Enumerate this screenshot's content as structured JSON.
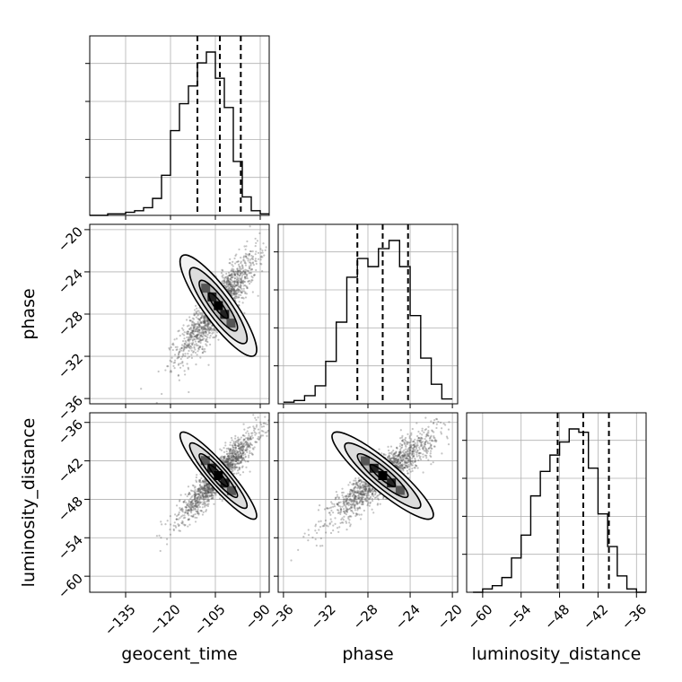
{
  "chart_data": {
    "type": "corner",
    "parameters": [
      "geocent_time",
      "phase",
      "luminosity_distance"
    ],
    "ranges": {
      "geocent_time": [
        -147,
        -87
      ],
      "phase": [
        -36.5,
        -19.5
      ],
      "luminosity_distance": [
        -62.5,
        -34.5
      ]
    },
    "ticks": {
      "geocent_time": [
        -135,
        -120,
        -105,
        -90
      ],
      "phase": [
        -36,
        -32,
        -28,
        -24,
        -20
      ],
      "luminosity_distance": [
        -60,
        -54,
        -48,
        -42,
        -36
      ]
    },
    "tick_labels": {
      "geocent_time": [
        "−135",
        "−120",
        "−105",
        "−90"
      ],
      "phase": [
        "−36",
        "−32",
        "−28",
        "−24",
        "−20"
      ],
      "luminosity_distance": [
        "−60",
        "−54",
        "−48",
        "−42",
        "−36"
      ]
    },
    "quantiles": {
      "geocent_time": [
        -111.0,
        -103.5,
        -96.5
      ],
      "phase": [
        -29.0,
        -26.6,
        -24.2
      ],
      "luminosity_distance": [
        -48.3,
        -44.3,
        -40.3
      ]
    },
    "histograms": {
      "geocent_time": {
        "edges": [
          -147,
          -144,
          -141,
          -138,
          -135,
          -132,
          -129,
          -126,
          -123,
          -120,
          -117,
          -114,
          -111,
          -108,
          -105,
          -102,
          -99,
          -96,
          -93,
          -90,
          -87
        ],
        "counts": [
          0,
          0,
          2,
          2,
          4,
          6,
          10,
          22,
          52,
          110,
          145,
          168,
          198,
          212,
          178,
          140,
          70,
          24,
          6,
          2
        ]
      },
      "phase": {
        "edges": [
          -36.0,
          -35.0,
          -34.0,
          -33.0,
          -32.0,
          -31.0,
          -30.0,
          -29.0,
          -28.0,
          -27.0,
          -26.0,
          -25.0,
          -24.0,
          -23.0,
          -22.0,
          -21.0,
          -20.0
        ],
        "counts": [
          2,
          4,
          10,
          22,
          52,
          100,
          155,
          178,
          168,
          190,
          200,
          168,
          108,
          56,
          24,
          6
        ]
      },
      "luminosity_distance": {
        "edges": [
          -61.5,
          -60.0,
          -58.5,
          -57.0,
          -55.5,
          -54.0,
          -52.5,
          -51.0,
          -49.5,
          -48.0,
          -46.5,
          -45.0,
          -43.5,
          -42.0,
          -40.5,
          -39.0,
          -37.5,
          -36.0,
          -34.5
        ],
        "counts": [
          0,
          4,
          8,
          18,
          42,
          70,
          118,
          148,
          168,
          184,
          200,
          196,
          152,
          96,
          56,
          20,
          4,
          0
        ]
      }
    },
    "pairs": [
      {
        "x": "geocent_time",
        "y": "phase",
        "mean": [
          -104,
          -27.2
        ],
        "sd": [
          6.4,
          2.4
        ],
        "rho": 0.87,
        "n_samples": 1600
      },
      {
        "x": "geocent_time",
        "y": "luminosity_distance",
        "mean": [
          -104,
          -44.3
        ],
        "sd": [
          6.4,
          3.4
        ],
        "rho": 0.92,
        "n_samples": 1600
      },
      {
        "x": "phase",
        "y": "luminosity_distance",
        "mean": [
          -26.6,
          -44.3
        ],
        "sd": [
          2.4,
          3.4
        ],
        "rho": 0.9,
        "n_samples": 1600
      }
    ],
    "contour_levels": [
      0.5,
      1.0,
      1.5,
      2.0
    ],
    "grid": true,
    "quantile_line_style": "dashed"
  }
}
